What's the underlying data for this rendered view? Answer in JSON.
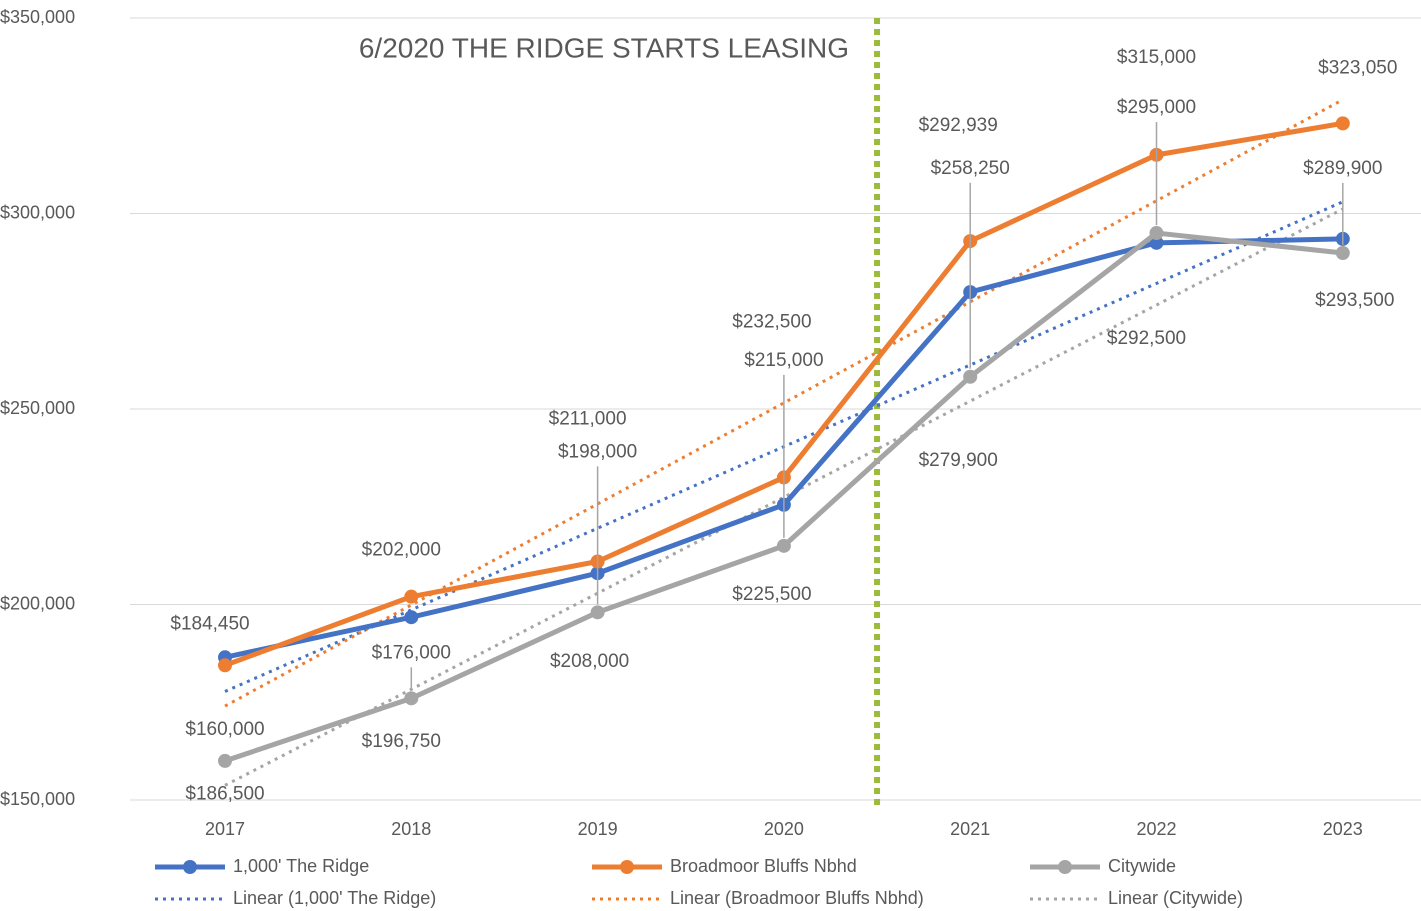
{
  "chart_data": {
    "type": "line",
    "annotation": "6/2020 THE RIDGE STARTS LEASING",
    "annotation_color": "#9bbb3b",
    "categories": [
      "2017",
      "2018",
      "2019",
      "2020",
      "2021",
      "2022",
      "2023"
    ],
    "series": [
      {
        "name": "1,000' The Ridge",
        "trend_name": "Linear (1,000' The Ridge)",
        "color": "#4472c4",
        "label_color": "#262626",
        "values": [
          186500,
          196750,
          208000,
          225500,
          279900,
          292500,
          293500
        ],
        "value_labels": [
          "$186,500",
          "$196,750",
          "$208,000",
          "$225,500",
          "$279,900",
          "$292,500",
          "$293,500"
        ]
      },
      {
        "name": "Broadmoor Bluffs Nbhd",
        "trend_name": "Linear (Broadmoor Bluffs Nbhd)",
        "color": "#ed7d31",
        "label_color": "#ed7d31",
        "values": [
          184450,
          202000,
          211000,
          232500,
          292939,
          315000,
          323050
        ],
        "value_labels": [
          "$184,450",
          "$202,000",
          "$211,000",
          "$232,500",
          "$292,939",
          "$315,000",
          "$323,050"
        ]
      },
      {
        "name": "Citywide",
        "trend_name": "Linear (Citywide)",
        "color": "#a5a5a5",
        "label_color": "#4472c4",
        "values": [
          160000,
          176000,
          198000,
          215000,
          258250,
          295000,
          289900
        ],
        "value_labels": [
          "$160,000",
          "$176,000",
          "$198,000",
          "$215,000",
          "$258,250",
          "$295,000",
          "$289,900"
        ]
      }
    ],
    "ylim": [
      150000,
      350000
    ],
    "yticks": [
      {
        "value": 150000,
        "label": "$150,000"
      },
      {
        "value": 200000,
        "label": "$200,000"
      },
      {
        "value": 250000,
        "label": "$250,000"
      },
      {
        "value": 300000,
        "label": "$300,000"
      },
      {
        "value": 350000,
        "label": "$350,000"
      }
    ],
    "grid": true,
    "legend": "bottom"
  }
}
